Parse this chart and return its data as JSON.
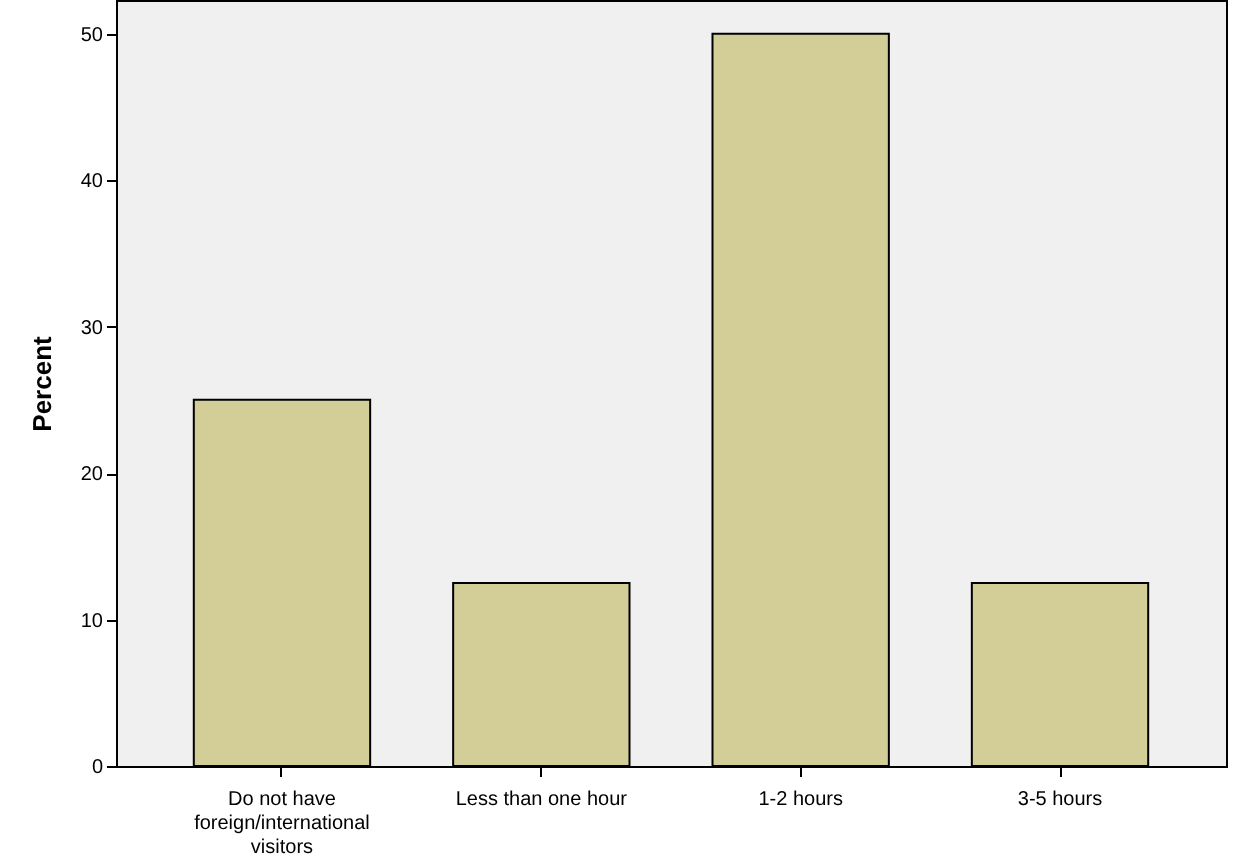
{
  "chart_data": {
    "type": "bar",
    "ylabel": "Percent",
    "categories": [
      "Do not have foreign/international visitors",
      "Less than one hour",
      "1-2 hours",
      "3-5 hours"
    ],
    "values": [
      25,
      12.5,
      50,
      12.5
    ],
    "color": "#d3ce97",
    "ylim": [
      0,
      52.3
    ],
    "yticks": [
      0,
      10,
      20,
      30,
      40,
      50
    ]
  }
}
